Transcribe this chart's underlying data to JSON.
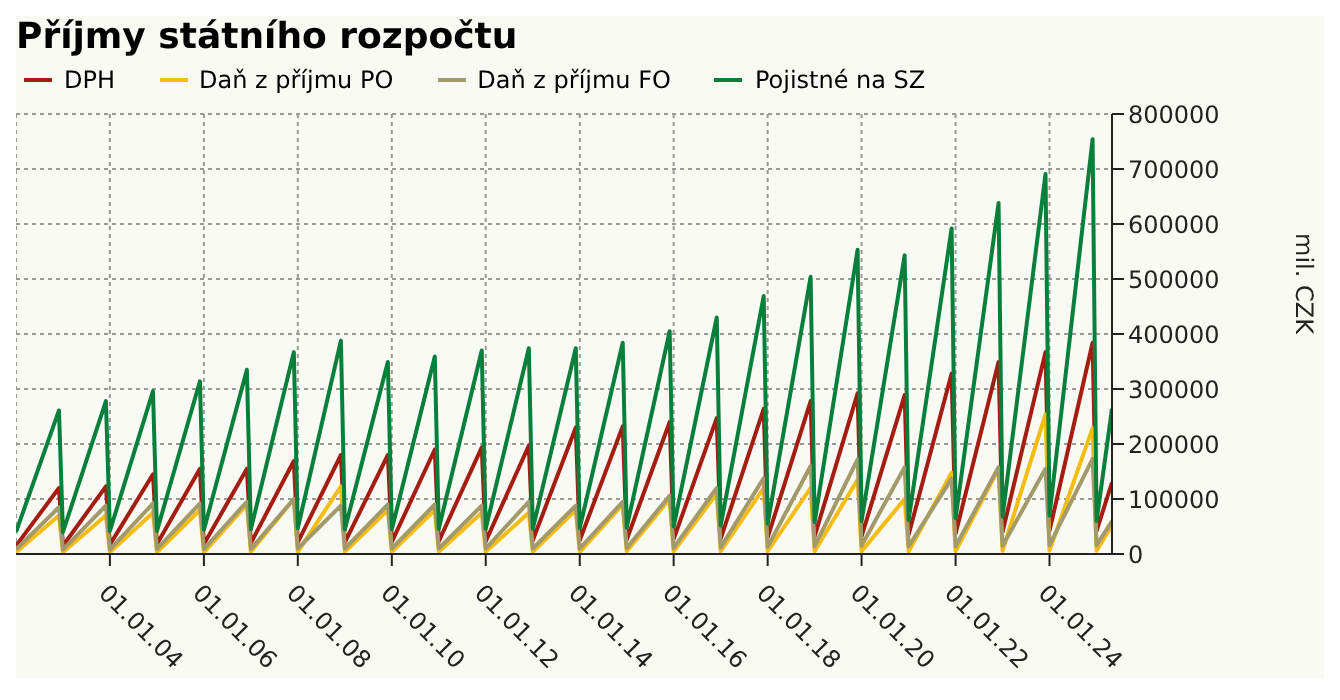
{
  "chart_data": {
    "type": "line",
    "title": "Příjmy státního rozpočtu",
    "ylabel": "mil. CZK",
    "legend": "top left",
    "grid": true,
    "marker": "none",
    "x": [
      "2002-01",
      "2002-12",
      "2003-01",
      "2003-12",
      "2004-01",
      "2004-12",
      "2005-01",
      "2005-12",
      "2006-01",
      "2006-12",
      "2007-01",
      "2007-12",
      "2008-01",
      "2008-12",
      "2009-01",
      "2009-12",
      "2010-01",
      "2010-12",
      "2011-01",
      "2011-12",
      "2012-01",
      "2012-12",
      "2013-01",
      "2013-12",
      "2014-01",
      "2014-12",
      "2015-01",
      "2015-12",
      "2016-01",
      "2016-12",
      "2017-01",
      "2017-12",
      "2018-01",
      "2018-12",
      "2019-01",
      "2019-12",
      "2020-01",
      "2020-12",
      "2021-01",
      "2021-12",
      "2022-01",
      "2022-12",
      "2023-01",
      "2023-12",
      "2024-01",
      "2024-12",
      "2025-01",
      "2025-05"
    ],
    "xlim": [
      "2002-01",
      "2025-05"
    ],
    "xticks": [
      {
        "value": "2004-01",
        "label": "01.01.04"
      },
      {
        "value": "2006-01",
        "label": "01.01.06"
      },
      {
        "value": "2008-01",
        "label": "01.01.08"
      },
      {
        "value": "2010-01",
        "label": "01.01.10"
      },
      {
        "value": "2012-01",
        "label": "01.01.12"
      },
      {
        "value": "2014-01",
        "label": "01.01.14"
      },
      {
        "value": "2016-01",
        "label": "01.01.16"
      },
      {
        "value": "2018-01",
        "label": "01.01.18"
      },
      {
        "value": "2020-01",
        "label": "01.01.20"
      },
      {
        "value": "2022-01",
        "label": "01.01.22"
      },
      {
        "value": "2024-01",
        "label": "01.01.24"
      }
    ],
    "ylim": [
      0,
      800000
    ],
    "yticks": [
      0,
      100000,
      200000,
      300000,
      400000,
      500000,
      600000,
      700000,
      800000
    ],
    "series": [
      {
        "name": "DPH",
        "color": "#a31d12",
        "values": [
          15000,
          120000,
          15000,
          123000,
          17000,
          145000,
          18000,
          155000,
          18000,
          155000,
          20000,
          169000,
          21000,
          180000,
          21000,
          180000,
          22000,
          190000,
          23000,
          194000,
          23000,
          197000,
          25000,
          230000,
          25000,
          232000,
          26000,
          240000,
          27000,
          247000,
          28000,
          264000,
          30000,
          278000,
          32000,
          292000,
          32000,
          289000,
          35000,
          328000,
          37000,
          349000,
          40000,
          367000,
          42000,
          384000,
          42000,
          130000
        ]
      },
      {
        "name": "Daň z příjmu PO",
        "color": "#f5bc12",
        "values": [
          3000,
          70000,
          3000,
          70000,
          3000,
          75000,
          3000,
          80000,
          3000,
          90000,
          4000,
          100000,
          4000,
          123000,
          4000,
          80000,
          4000,
          80000,
          4000,
          75000,
          4000,
          75000,
          4000,
          80000,
          4000,
          90000,
          5000,
          100000,
          5000,
          110000,
          5000,
          120000,
          5000,
          120000,
          5000,
          135000,
          5000,
          100000,
          5000,
          148000,
          5000,
          155000,
          6000,
          254000,
          6000,
          229000,
          6000,
          53000
        ]
      },
      {
        "name": "Daň z příjmu FO",
        "color": "#a39a6c",
        "values": [
          8000,
          85000,
          8000,
          88000,
          8000,
          92000,
          9000,
          92000,
          9000,
          95000,
          9000,
          100000,
          10000,
          88000,
          10000,
          90000,
          10000,
          90000,
          10000,
          88000,
          10000,
          95000,
          10000,
          88000,
          10000,
          95000,
          11000,
          106000,
          11000,
          120000,
          12000,
          138000,
          13000,
          160000,
          14000,
          172000,
          15000,
          158000,
          14000,
          137000,
          14000,
          158000,
          15000,
          155000,
          16000,
          173000,
          16000,
          60000
        ]
      },
      {
        "name": "Pojistné na SZ",
        "color": "#08803c",
        "values": [
          40000,
          261000,
          40000,
          278000,
          42000,
          296000,
          42000,
          314000,
          44000,
          335000,
          45000,
          367000,
          47000,
          388000,
          45000,
          349000,
          45000,
          359000,
          46000,
          370000,
          46000,
          374000,
          46000,
          374000,
          47000,
          384000,
          48000,
          405000,
          50000,
          430000,
          52000,
          469000,
          55000,
          504000,
          58000,
          553000,
          60000,
          543000,
          62000,
          592000,
          65000,
          638000,
          68000,
          691000,
          70000,
          754000,
          60000,
          264000
        ]
      }
    ]
  }
}
